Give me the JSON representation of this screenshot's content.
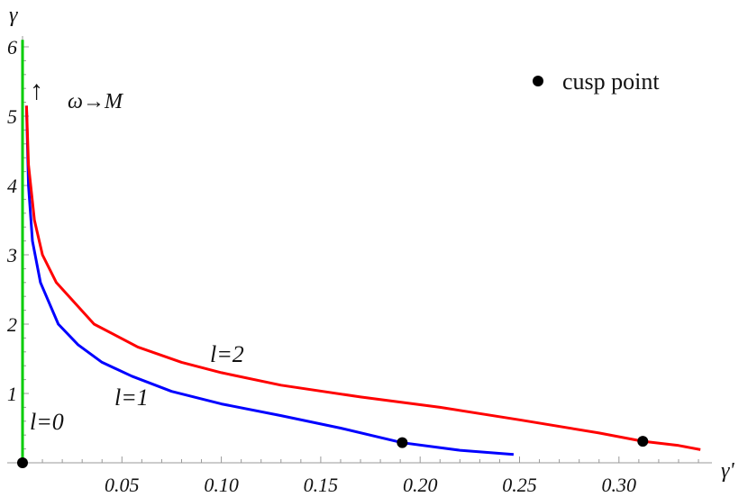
{
  "chart_data": {
    "type": "line",
    "title": "",
    "xlabel": "γ'",
    "ylabel": "γ",
    "xlim": [
      0,
      0.35
    ],
    "ylim": [
      0,
      6
    ],
    "x_ticks": [
      "0.05",
      "0.10",
      "0.15",
      "0.20",
      "0.25",
      "0.30"
    ],
    "y_ticks": [
      "1",
      "2",
      "3",
      "4",
      "5",
      "6"
    ],
    "grid": false,
    "series": [
      {
        "name": "l=0",
        "color": "#00cc00",
        "x": [
          0,
          0
        ],
        "y": [
          0,
          6.1
        ]
      },
      {
        "name": "l=1",
        "color": "#0000ff",
        "x": [
          0.002,
          0.003,
          0.005,
          0.009,
          0.018,
          0.028,
          0.04,
          0.055,
          0.075,
          0.1,
          0.13,
          0.16,
          0.191,
          0.22,
          0.247
        ],
        "y": [
          5.15,
          4.0,
          3.2,
          2.6,
          2.0,
          1.7,
          1.45,
          1.25,
          1.03,
          0.85,
          0.68,
          0.5,
          0.29,
          0.18,
          0.12
        ]
      },
      {
        "name": "l=2",
        "color": "#ff0000",
        "x": [
          0.002,
          0.003,
          0.006,
          0.01,
          0.017,
          0.036,
          0.058,
          0.08,
          0.1,
          0.13,
          0.17,
          0.21,
          0.25,
          0.29,
          0.312,
          0.33,
          0.341
        ],
        "y": [
          5.15,
          4.3,
          3.5,
          3.0,
          2.6,
          2.0,
          1.67,
          1.45,
          1.3,
          1.12,
          0.95,
          0.8,
          0.62,
          0.43,
          0.31,
          0.25,
          0.19
        ]
      }
    ],
    "points": [
      {
        "name": "cusp point",
        "x": 0.0,
        "y": 0.0
      },
      {
        "name": "cusp point",
        "x": 0.191,
        "y": 0.29
      },
      {
        "name": "cusp point",
        "x": 0.312,
        "y": 0.31
      }
    ],
    "annotations": [
      {
        "text": "l=0",
        "x": 0.001,
        "y": 0.6
      },
      {
        "text": "l=1",
        "x": 0.047,
        "y": 0.95
      },
      {
        "text": "l=2",
        "x": 0.095,
        "y": 1.5
      },
      {
        "text": "↑",
        "x": 0.004,
        "y": 5.1
      },
      {
        "text": "ω→M",
        "x": 0.025,
        "y": 5.1
      }
    ],
    "legend": {
      "position": "top-right",
      "entries": [
        "cusp point"
      ]
    }
  },
  "labels": {
    "xlabel": "γ'",
    "ylabel": "γ",
    "legend_cusp": "cusp point",
    "arrow": "↑",
    "omega": "ω→M",
    "l0": "l=0",
    "l1": "l=1",
    "l2": "l=2"
  }
}
